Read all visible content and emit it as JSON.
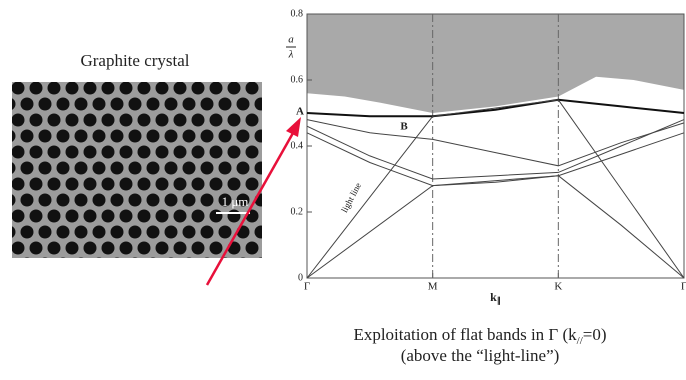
{
  "image_label": "Graphite crystal",
  "scale_bar": "1 μm",
  "chart_data": {
    "type": "line",
    "ylabel": {
      "numerator": "a",
      "denominator": "λ"
    },
    "xlabel": {
      "text": "k",
      "subscript": "∥"
    },
    "xlim": [
      0,
      3
    ],
    "xticks": [
      {
        "value": 0,
        "label": "Γ"
      },
      {
        "value": 1,
        "label": "M"
      },
      {
        "value": 2,
        "label": "K"
      },
      {
        "value": 3,
        "label": "Γ"
      }
    ],
    "ylim": [
      0,
      0.8
    ],
    "yticks": [
      0,
      0.2,
      0.4,
      0.6,
      0.8
    ],
    "shaded_region": {
      "x": [
        0,
        0.3,
        0.6,
        1,
        1.5,
        2,
        2.3,
        2.6,
        3
      ],
      "values": [
        0.56,
        0.55,
        0.53,
        0.5,
        0.52,
        0.55,
        0.61,
        0.6,
        0.57
      ],
      "color": "#a9a9a9"
    },
    "series": [
      {
        "color": "#111111",
        "x": [
          0,
          0.5,
          1,
          1.5,
          2,
          2.5,
          3
        ],
        "values": [
          0.5,
          0.49,
          0.49,
          0.51,
          0.54,
          0.52,
          0.5
        ]
      },
      {
        "color": "#444444",
        "x": [
          0,
          0.5,
          1,
          1.5,
          2,
          2.5,
          3
        ],
        "values": [
          0.48,
          0.44,
          0.42,
          0.38,
          0.34,
          0.41,
          0.47
        ]
      },
      {
        "color": "#444444",
        "x": [
          0,
          0.5,
          1,
          1.5,
          2,
          2.5,
          3
        ],
        "values": [
          0.46,
          0.37,
          0.3,
          0.31,
          0.32,
          0.4,
          0.48
        ]
      },
      {
        "color": "#444444",
        "x": [
          0,
          0.5,
          1,
          1.5,
          2,
          2.5,
          3
        ],
        "values": [
          0.44,
          0.35,
          0.28,
          0.29,
          0.31,
          0.16,
          0
        ]
      },
      {
        "color": "#444444",
        "x": [
          0,
          1,
          2,
          3
        ],
        "values": [
          0,
          0.28,
          0.31,
          0.44
        ]
      },
      {
        "color": "#444444",
        "x": [
          0,
          1,
          2,
          3
        ],
        "values": [
          0,
          0.49,
          0.54,
          0
        ]
      }
    ],
    "annotations": {
      "A": "A",
      "B": "B",
      "light_line": "light line"
    }
  },
  "caption": {
    "line1": {
      "before": "Exploitation of flat bands in Γ (k",
      "subscript": "//",
      "after": "=0)"
    },
    "line2": "(above the “light-line”)"
  }
}
